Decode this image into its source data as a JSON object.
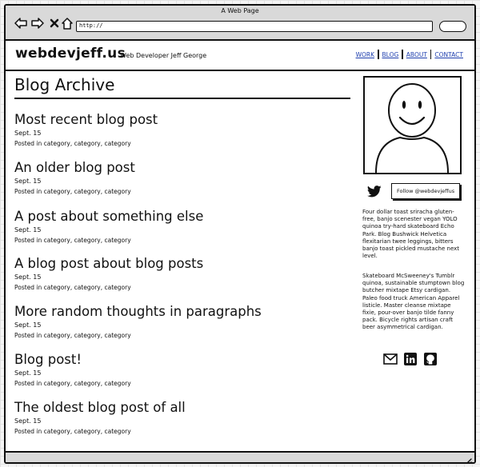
{
  "window": {
    "title": "A Web Page",
    "url": "http://"
  },
  "header": {
    "logo": "webdevjeff.us",
    "tagline": "Web Developer Jeff George",
    "nav": [
      "WORK",
      "BLOG",
      "ABOUT",
      "CONTACT"
    ],
    "link_color": "#1f3fae"
  },
  "archive": {
    "title": "Blog Archive",
    "posts": [
      {
        "title": "Most recent blog post",
        "date": "Sept. 15",
        "meta": "Posted in category, category, category"
      },
      {
        "title": "An older blog post",
        "date": "Sept. 15",
        "meta": "Posted in category, category, category"
      },
      {
        "title": "A post about something else",
        "date": "Sept. 15",
        "meta": "Posted in category, category, category"
      },
      {
        "title": "A blog post about blog posts",
        "date": "Sept. 15",
        "meta": "Posted in category, category, category"
      },
      {
        "title": "More random thoughts in paragraphs",
        "date": "Sept. 15",
        "meta": "Posted in category, category, category"
      },
      {
        "title": "Blog post!",
        "date": "Sept. 15",
        "meta": "Posted in category, category, category"
      },
      {
        "title": "The oldest blog post of all",
        "date": "Sept. 15",
        "meta": "Posted in category, category, category"
      }
    ]
  },
  "sidebar": {
    "avatar_icon": "smiley-avatar-icon",
    "follow_label": "Follow @webdevjeffus",
    "bio": [
      "Four dollar toast sriracha gluten-free, banjo scenester vegan YOLO quinoa try-hard skateboard Echo Park. Blog Bushwick Helvetica flexitarian twee leggings, bitters banjo toast pickled mustache next level.",
      "Skateboard McSweeney's Tumblr quinoa, sustainable stumptown blog butcher mixtape Etsy cardigan. Paleo food truck American Apparel listicle. Master cleanse mixtape fixie, pour-over banjo tilde fanny pack. Bicycle rights artisan craft beer asymmetrical cardigan."
    ],
    "social_icons": [
      "mail-icon",
      "linkedin-icon",
      "github-icon"
    ]
  }
}
